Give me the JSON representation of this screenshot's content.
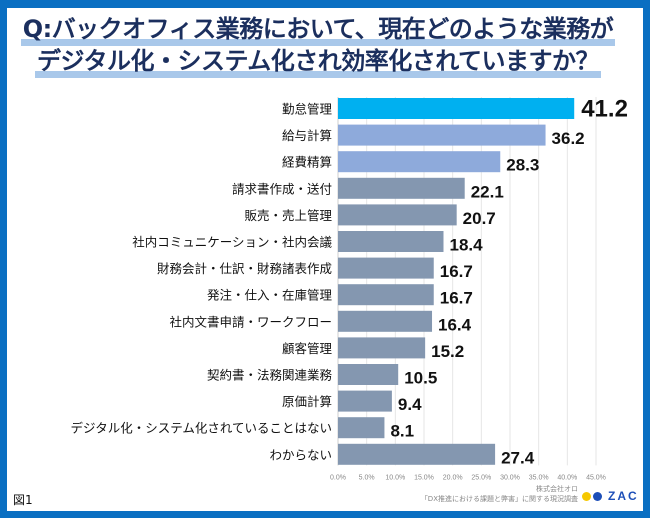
{
  "title": {
    "line1": "Q:バックオフィス業務において、現在どのような業務が",
    "line2": "デジタル化・システム化され効率化されていますか？"
  },
  "figure_label": "図1",
  "source": {
    "company": "株式会社オロ",
    "survey": "「DX推進における課題と弊害」に関する現況調査"
  },
  "logo": {
    "text": "ZAC",
    "icon": "two-dots-logo-icon"
  },
  "colors": {
    "frame": "#0a6fc2",
    "highlight_bar": "#00b0f0",
    "secondary_bar": "#8eaadb",
    "default_bar": "#8497b0",
    "title_text": "#1b2f5e",
    "title_underline": "#a9c8ea"
  },
  "chart_data": {
    "type": "bar",
    "orientation": "horizontal",
    "title": "Q:バックオフィス業務において、現在どのような業務がデジタル化・システム化され効率化されていますか？",
    "xlabel": "",
    "ylabel": "",
    "categories": [
      "勤怠管理",
      "給与計算",
      "経費精算",
      "請求書作成・送付",
      "販売・売上管理",
      "社内コミュニケーション・社内会議",
      "財務会計・仕訳・財務諸表作成",
      "発注・仕入・在庫管理",
      "社内文書申請・ワークフロー",
      "顧客管理",
      "契約書・法務関連業務",
      "原価計算",
      "デジタル化・システム化されていることはない",
      "わからない"
    ],
    "values": [
      41.2,
      36.2,
      28.3,
      22.1,
      20.7,
      18.4,
      16.7,
      16.7,
      16.4,
      15.2,
      10.5,
      9.4,
      8.1,
      27.4
    ],
    "value_labels": [
      "41.2",
      "36.2",
      "28.3",
      "22.1",
      "20.7",
      "18.4",
      "16.7",
      "16.7",
      "16.4",
      "15.2",
      "10.5",
      "9.4",
      "8.1",
      "27.4"
    ],
    "bar_color_groups": [
      "highlight",
      "secondary",
      "secondary",
      "default",
      "default",
      "default",
      "default",
      "default",
      "default",
      "default",
      "default",
      "default",
      "default",
      "default"
    ],
    "xlim": [
      0,
      45
    ],
    "xticks": [
      0,
      5,
      10,
      15,
      20,
      25,
      30,
      35,
      40,
      45
    ],
    "xtick_labels": [
      "0.0%",
      "5.0%",
      "10.0%",
      "15.0%",
      "20.0%",
      "25.0%",
      "30.0%",
      "35.0%",
      "40.0%",
      "45.0%"
    ],
    "grid": true,
    "legend": "none"
  }
}
